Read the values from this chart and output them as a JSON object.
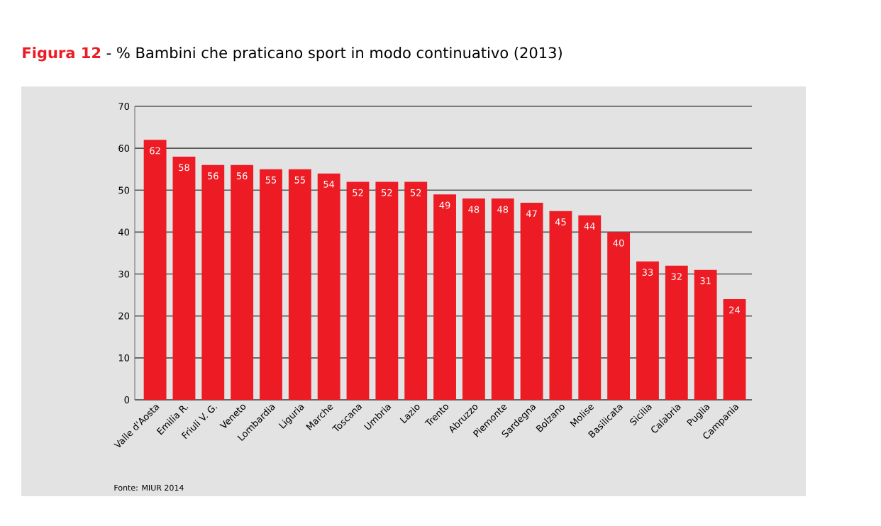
{
  "chart_data": {
    "type": "bar",
    "title": "Figura 12",
    "subtitle": "- % Bambini che praticano sport in modo continuativo (2013)",
    "categories": [
      "Valle d'Aosta",
      "Emilia R.",
      "Friuli V. G.",
      "Veneto",
      "Lombardia",
      "Liguria",
      "Marche",
      "Toscana",
      "Umbria",
      "Lazio",
      "Trento",
      "Abruzzo",
      "Piemonte",
      "Sardegna",
      "Bolzano",
      "Molise",
      "Basilicata",
      "Sicilia",
      "Calabria",
      "Puglia",
      "Campania"
    ],
    "values": [
      62,
      58,
      56,
      56,
      55,
      55,
      54,
      52,
      52,
      52,
      49,
      48,
      48,
      47,
      45,
      44,
      40,
      33,
      32,
      31,
      24
    ],
    "color": "#ed1c24",
    "data_labels": true,
    "ylim": [
      0,
      70
    ],
    "yticks": [
      0,
      10,
      20,
      30,
      40,
      50,
      60,
      70
    ],
    "grid": "y",
    "annotations": [
      "Fonte: MIUR 2014"
    ]
  }
}
